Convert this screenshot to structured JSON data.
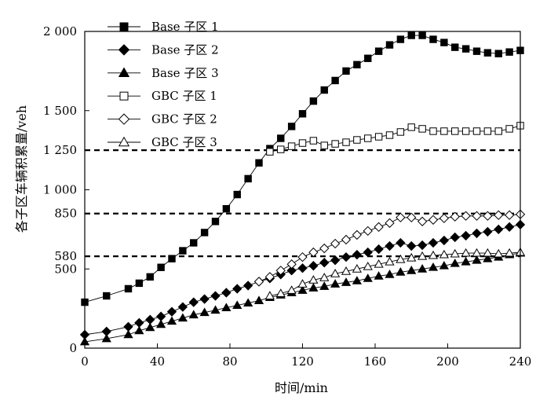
{
  "chart_data": {
    "type": "line",
    "xlabel": "时间/min",
    "ylabel": "各子区车辆积累量/veh",
    "xlim": [
      0,
      240
    ],
    "ylim": [
      0,
      2000
    ],
    "xticks": [
      0,
      40,
      80,
      120,
      160,
      200,
      240
    ],
    "xtick_labels": [
      "0",
      "40",
      "80",
      "120",
      "160",
      "200",
      "240"
    ],
    "yticks": [
      0,
      500,
      580,
      850,
      1000,
      1250,
      1500,
      2000
    ],
    "ytick_labels": [
      "0",
      "500",
      "580",
      "850",
      "1 000",
      "1 250",
      "1 500",
      "2 000"
    ],
    "reference_lines": [
      580,
      850,
      1250
    ],
    "legend_position": "top-left",
    "grid": false,
    "series": [
      {
        "name": "Base 子区 1",
        "marker": "square-filled",
        "x": [
          0,
          12,
          24,
          30,
          36,
          42,
          48,
          54,
          60,
          66,
          72,
          78,
          84,
          90,
          96,
          102,
          108,
          114,
          120,
          126,
          132,
          138,
          144,
          150,
          156,
          162,
          168,
          174,
          180,
          186,
          192,
          198,
          204,
          210,
          216,
          222,
          228,
          234,
          240
        ],
        "y": [
          290,
          330,
          375,
          410,
          450,
          510,
          565,
          615,
          665,
          730,
          800,
          880,
          970,
          1070,
          1170,
          1260,
          1325,
          1400,
          1480,
          1560,
          1630,
          1690,
          1750,
          1790,
          1830,
          1875,
          1915,
          1950,
          1975,
          1975,
          1950,
          1930,
          1900,
          1890,
          1875,
          1865,
          1860,
          1870,
          1880
        ]
      },
      {
        "name": "Base 子区 2",
        "marker": "diamond-filled",
        "x": [
          0,
          12,
          24,
          30,
          36,
          42,
          48,
          54,
          60,
          66,
          72,
          78,
          84,
          90,
          96,
          102,
          108,
          114,
          120,
          126,
          132,
          138,
          144,
          150,
          156,
          162,
          168,
          174,
          180,
          186,
          192,
          198,
          204,
          210,
          216,
          222,
          228,
          234,
          240
        ],
        "y": [
          85,
          105,
          135,
          160,
          180,
          200,
          230,
          260,
          290,
          310,
          330,
          350,
          375,
          395,
          420,
          440,
          465,
          490,
          505,
          520,
          540,
          555,
          575,
          590,
          605,
          625,
          645,
          665,
          645,
          650,
          665,
          680,
          700,
          710,
          725,
          735,
          750,
          765,
          780
        ]
      },
      {
        "name": "Base 子区 3",
        "marker": "triangle-filled",
        "x": [
          0,
          12,
          24,
          30,
          36,
          42,
          48,
          54,
          60,
          66,
          72,
          78,
          84,
          90,
          96,
          102,
          108,
          114,
          120,
          126,
          132,
          138,
          144,
          150,
          156,
          162,
          168,
          174,
          180,
          186,
          192,
          198,
          204,
          210,
          216,
          222,
          228,
          234,
          240
        ],
        "y": [
          40,
          60,
          85,
          110,
          130,
          150,
          170,
          190,
          210,
          225,
          240,
          255,
          270,
          285,
          300,
          320,
          335,
          350,
          365,
          380,
          390,
          405,
          415,
          425,
          440,
          455,
          465,
          480,
          490,
          500,
          510,
          520,
          535,
          545,
          555,
          565,
          575,
          590,
          600
        ]
      },
      {
        "name": "GBC 子区 1",
        "marker": "square-open",
        "x": [
          102,
          108,
          114,
          120,
          126,
          132,
          138,
          144,
          150,
          156,
          162,
          168,
          174,
          180,
          186,
          192,
          198,
          204,
          210,
          216,
          222,
          228,
          234,
          240
        ],
        "y": [
          1240,
          1255,
          1275,
          1295,
          1310,
          1280,
          1290,
          1300,
          1315,
          1325,
          1335,
          1345,
          1365,
          1395,
          1385,
          1370,
          1370,
          1370,
          1370,
          1370,
          1370,
          1370,
          1385,
          1405
        ]
      },
      {
        "name": "GBC 子区 2",
        "marker": "diamond-open",
        "x": [
          96,
          102,
          108,
          114,
          120,
          126,
          132,
          138,
          144,
          150,
          156,
          162,
          168,
          174,
          180,
          186,
          192,
          198,
          204,
          210,
          216,
          222,
          228,
          234,
          240
        ],
        "y": [
          420,
          450,
          490,
          530,
          575,
          605,
          630,
          660,
          685,
          715,
          740,
          765,
          790,
          825,
          825,
          800,
          810,
          820,
          830,
          835,
          835,
          835,
          840,
          840,
          845
        ]
      },
      {
        "name": "GBC 子区 3",
        "marker": "triangle-open",
        "x": [
          102,
          108,
          114,
          120,
          126,
          132,
          138,
          144,
          150,
          156,
          162,
          168,
          174,
          180,
          186,
          192,
          198,
          204,
          210,
          216,
          222,
          228,
          234,
          240
        ],
        "y": [
          330,
          345,
          365,
          405,
          430,
          445,
          470,
          485,
          500,
          515,
          530,
          545,
          560,
          570,
          580,
          585,
          590,
          595,
          600,
          600,
          600,
          595,
          600,
          605
        ]
      }
    ]
  }
}
